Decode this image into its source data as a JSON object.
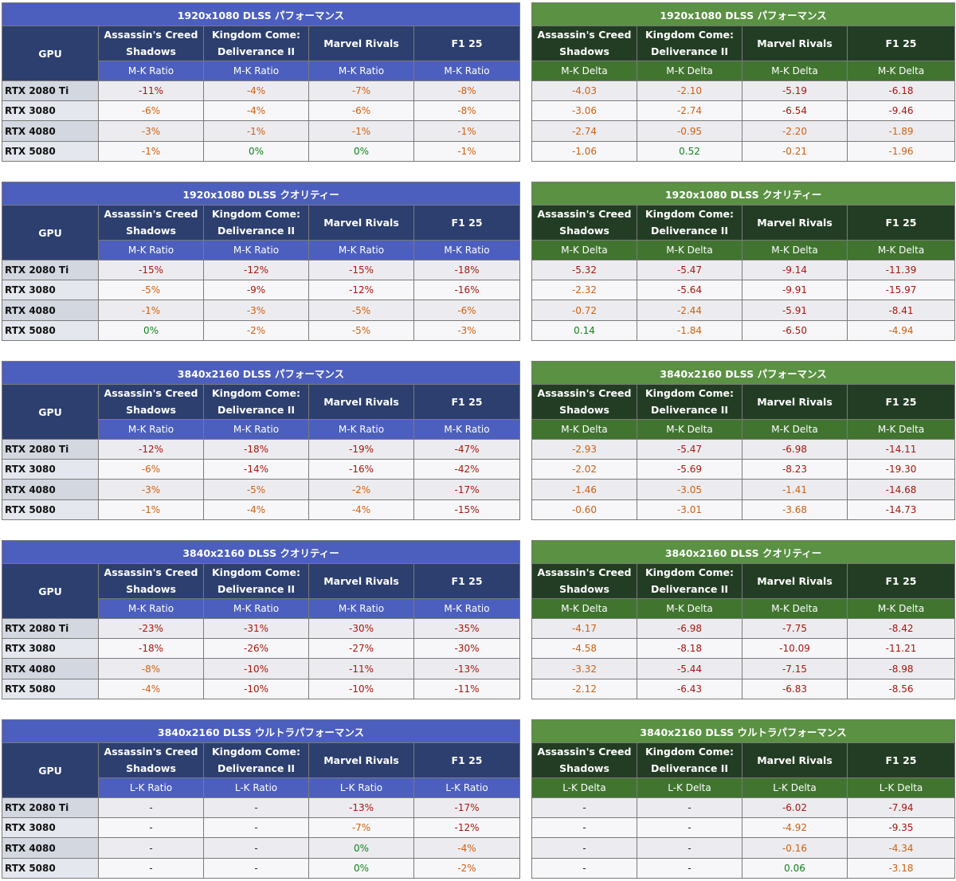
{
  "colors": {
    "ratio_header": "#4c5fbe",
    "ratio_game_header": "#2c3f6e",
    "delta_header": "#5a9143",
    "delta_game_header": "#233d24",
    "delta_metric_header": "#40742f",
    "value_severe": "#a8160c",
    "value_moderate": "#cf6010",
    "value_positive": "#12821c",
    "value_neutral": "#222222"
  },
  "gpu_header": "GPU",
  "games": [
    [
      "Assassin's Creed",
      "Shadows"
    ],
    [
      "Kingdom Come:",
      "Deliverance II"
    ],
    [
      "Marvel Rivals"
    ],
    [
      "F1 25"
    ]
  ],
  "gpus": [
    "RTX 2080 Ti",
    "RTX 3080",
    "RTX 4080",
    "RTX 5080"
  ],
  "sections": [
    {
      "title": "1920x1080 DLSS パフォーマンス",
      "ratio_label": "M-K Ratio",
      "delta_label": "M-K Delta",
      "ratio": [
        [
          "-11%",
          "-4%",
          "-7%",
          "-8%"
        ],
        [
          "-6%",
          "-4%",
          "-6%",
          "-8%"
        ],
        [
          "-3%",
          "-1%",
          "-1%",
          "-1%"
        ],
        [
          "-1%",
          "0%",
          "0%",
          "-1%"
        ]
      ],
      "ratio_level": [
        [
          "s",
          "m",
          "m",
          "m"
        ],
        [
          "m",
          "m",
          "m",
          "m"
        ],
        [
          "m",
          "m",
          "m",
          "m"
        ],
        [
          "m",
          "p",
          "p",
          "m"
        ]
      ],
      "delta": [
        [
          "-4.03",
          "-2.10",
          "-5.19",
          "-6.18"
        ],
        [
          "-3.06",
          "-2.74",
          "-6.54",
          "-9.46"
        ],
        [
          "-2.74",
          "-0.95",
          "-2.20",
          "-1.89"
        ],
        [
          "-1.06",
          "0.52",
          "-0.21",
          "-1.96"
        ]
      ],
      "delta_level": [
        [
          "m",
          "m",
          "s",
          "s"
        ],
        [
          "m",
          "m",
          "s",
          "s"
        ],
        [
          "m",
          "m",
          "m",
          "m"
        ],
        [
          "m",
          "p",
          "m",
          "m"
        ]
      ]
    },
    {
      "title": "1920x1080 DLSS クオリティー",
      "ratio_label": "M-K Ratio",
      "delta_label": "M-K Delta",
      "ratio": [
        [
          "-15%",
          "-12%",
          "-15%",
          "-18%"
        ],
        [
          "-5%",
          "-9%",
          "-12%",
          "-16%"
        ],
        [
          "-1%",
          "-3%",
          "-5%",
          "-6%"
        ],
        [
          "0%",
          "-2%",
          "-5%",
          "-3%"
        ]
      ],
      "ratio_level": [
        [
          "s",
          "s",
          "s",
          "s"
        ],
        [
          "m",
          "s",
          "s",
          "s"
        ],
        [
          "m",
          "m",
          "m",
          "m"
        ],
        [
          "p",
          "m",
          "m",
          "m"
        ]
      ],
      "delta": [
        [
          "-5.32",
          "-5.47",
          "-9.14",
          "-11.39"
        ],
        [
          "-2.32",
          "-5.64",
          "-9.91",
          "-15.97"
        ],
        [
          "-0.72",
          "-2.44",
          "-5.91",
          "-8.41"
        ],
        [
          "0.14",
          "-1.84",
          "-6.50",
          "-4.94"
        ]
      ],
      "delta_level": [
        [
          "s",
          "s",
          "s",
          "s"
        ],
        [
          "m",
          "s",
          "s",
          "s"
        ],
        [
          "m",
          "m",
          "s",
          "s"
        ],
        [
          "p",
          "m",
          "s",
          "m"
        ]
      ]
    },
    {
      "title": "3840x2160 DLSS パフォーマンス",
      "ratio_label": "M-K Ratio",
      "delta_label": "M-K Delta",
      "ratio": [
        [
          "-12%",
          "-18%",
          "-19%",
          "-47%"
        ],
        [
          "-6%",
          "-14%",
          "-16%",
          "-42%"
        ],
        [
          "-3%",
          "-5%",
          "-2%",
          "-17%"
        ],
        [
          "-1%",
          "-4%",
          "-4%",
          "-15%"
        ]
      ],
      "ratio_level": [
        [
          "s",
          "s",
          "s",
          "s"
        ],
        [
          "m",
          "s",
          "s",
          "s"
        ],
        [
          "m",
          "m",
          "m",
          "s"
        ],
        [
          "m",
          "m",
          "m",
          "s"
        ]
      ],
      "delta": [
        [
          "-2.93",
          "-5.47",
          "-6.98",
          "-14.11"
        ],
        [
          "-2.02",
          "-5.69",
          "-8.23",
          "-19.30"
        ],
        [
          "-1.46",
          "-3.05",
          "-1.41",
          "-14.68"
        ],
        [
          "-0.60",
          "-3.01",
          "-3.68",
          "-14.73"
        ]
      ],
      "delta_level": [
        [
          "m",
          "s",
          "s",
          "s"
        ],
        [
          "m",
          "s",
          "s",
          "s"
        ],
        [
          "m",
          "m",
          "m",
          "s"
        ],
        [
          "m",
          "m",
          "m",
          "s"
        ]
      ]
    },
    {
      "title": "3840x2160 DLSS クオリティー",
      "ratio_label": "M-K Ratio",
      "delta_label": "M-K Delta",
      "ratio": [
        [
          "-23%",
          "-31%",
          "-30%",
          "-35%"
        ],
        [
          "-18%",
          "-26%",
          "-27%",
          "-30%"
        ],
        [
          "-8%",
          "-10%",
          "-11%",
          "-13%"
        ],
        [
          "-4%",
          "-10%",
          "-10%",
          "-11%"
        ]
      ],
      "ratio_level": [
        [
          "s",
          "s",
          "s",
          "s"
        ],
        [
          "s",
          "s",
          "s",
          "s"
        ],
        [
          "m",
          "s",
          "s",
          "s"
        ],
        [
          "m",
          "s",
          "s",
          "s"
        ]
      ],
      "delta": [
        [
          "-4.17",
          "-6.98",
          "-7.75",
          "-8.42"
        ],
        [
          "-4.58",
          "-8.18",
          "-10.09",
          "-11.21"
        ],
        [
          "-3.32",
          "-5.44",
          "-7.15",
          "-8.98"
        ],
        [
          "-2.12",
          "-6.43",
          "-6.83",
          "-8.56"
        ]
      ],
      "delta_level": [
        [
          "m",
          "s",
          "s",
          "s"
        ],
        [
          "m",
          "s",
          "s",
          "s"
        ],
        [
          "m",
          "s",
          "s",
          "s"
        ],
        [
          "m",
          "s",
          "s",
          "s"
        ]
      ]
    },
    {
      "title": "3840x2160 DLSS ウルトラパフォーマンス",
      "ratio_label": "L-K Ratio",
      "delta_label": "L-K Delta",
      "ratio": [
        [
          "-",
          "-",
          "-13%",
          "-17%"
        ],
        [
          "-",
          "-",
          "-7%",
          "-12%"
        ],
        [
          "-",
          "-",
          "0%",
          "-4%"
        ],
        [
          "-",
          "-",
          "0%",
          "-2%"
        ]
      ],
      "ratio_level": [
        [
          "n",
          "n",
          "s",
          "s"
        ],
        [
          "n",
          "n",
          "m",
          "s"
        ],
        [
          "n",
          "n",
          "p",
          "m"
        ],
        [
          "n",
          "n",
          "p",
          "m"
        ]
      ],
      "delta": [
        [
          "-",
          "-",
          "-6.02",
          "-7.94"
        ],
        [
          "-",
          "-",
          "-4.92",
          "-9.35"
        ],
        [
          "-",
          "-",
          "-0.16",
          "-4.34"
        ],
        [
          "-",
          "-",
          "0.06",
          "-3.18"
        ]
      ],
      "delta_level": [
        [
          "n",
          "n",
          "s",
          "s"
        ],
        [
          "n",
          "n",
          "m",
          "s"
        ],
        [
          "n",
          "n",
          "m",
          "m"
        ],
        [
          "n",
          "n",
          "p",
          "m"
        ]
      ]
    }
  ]
}
